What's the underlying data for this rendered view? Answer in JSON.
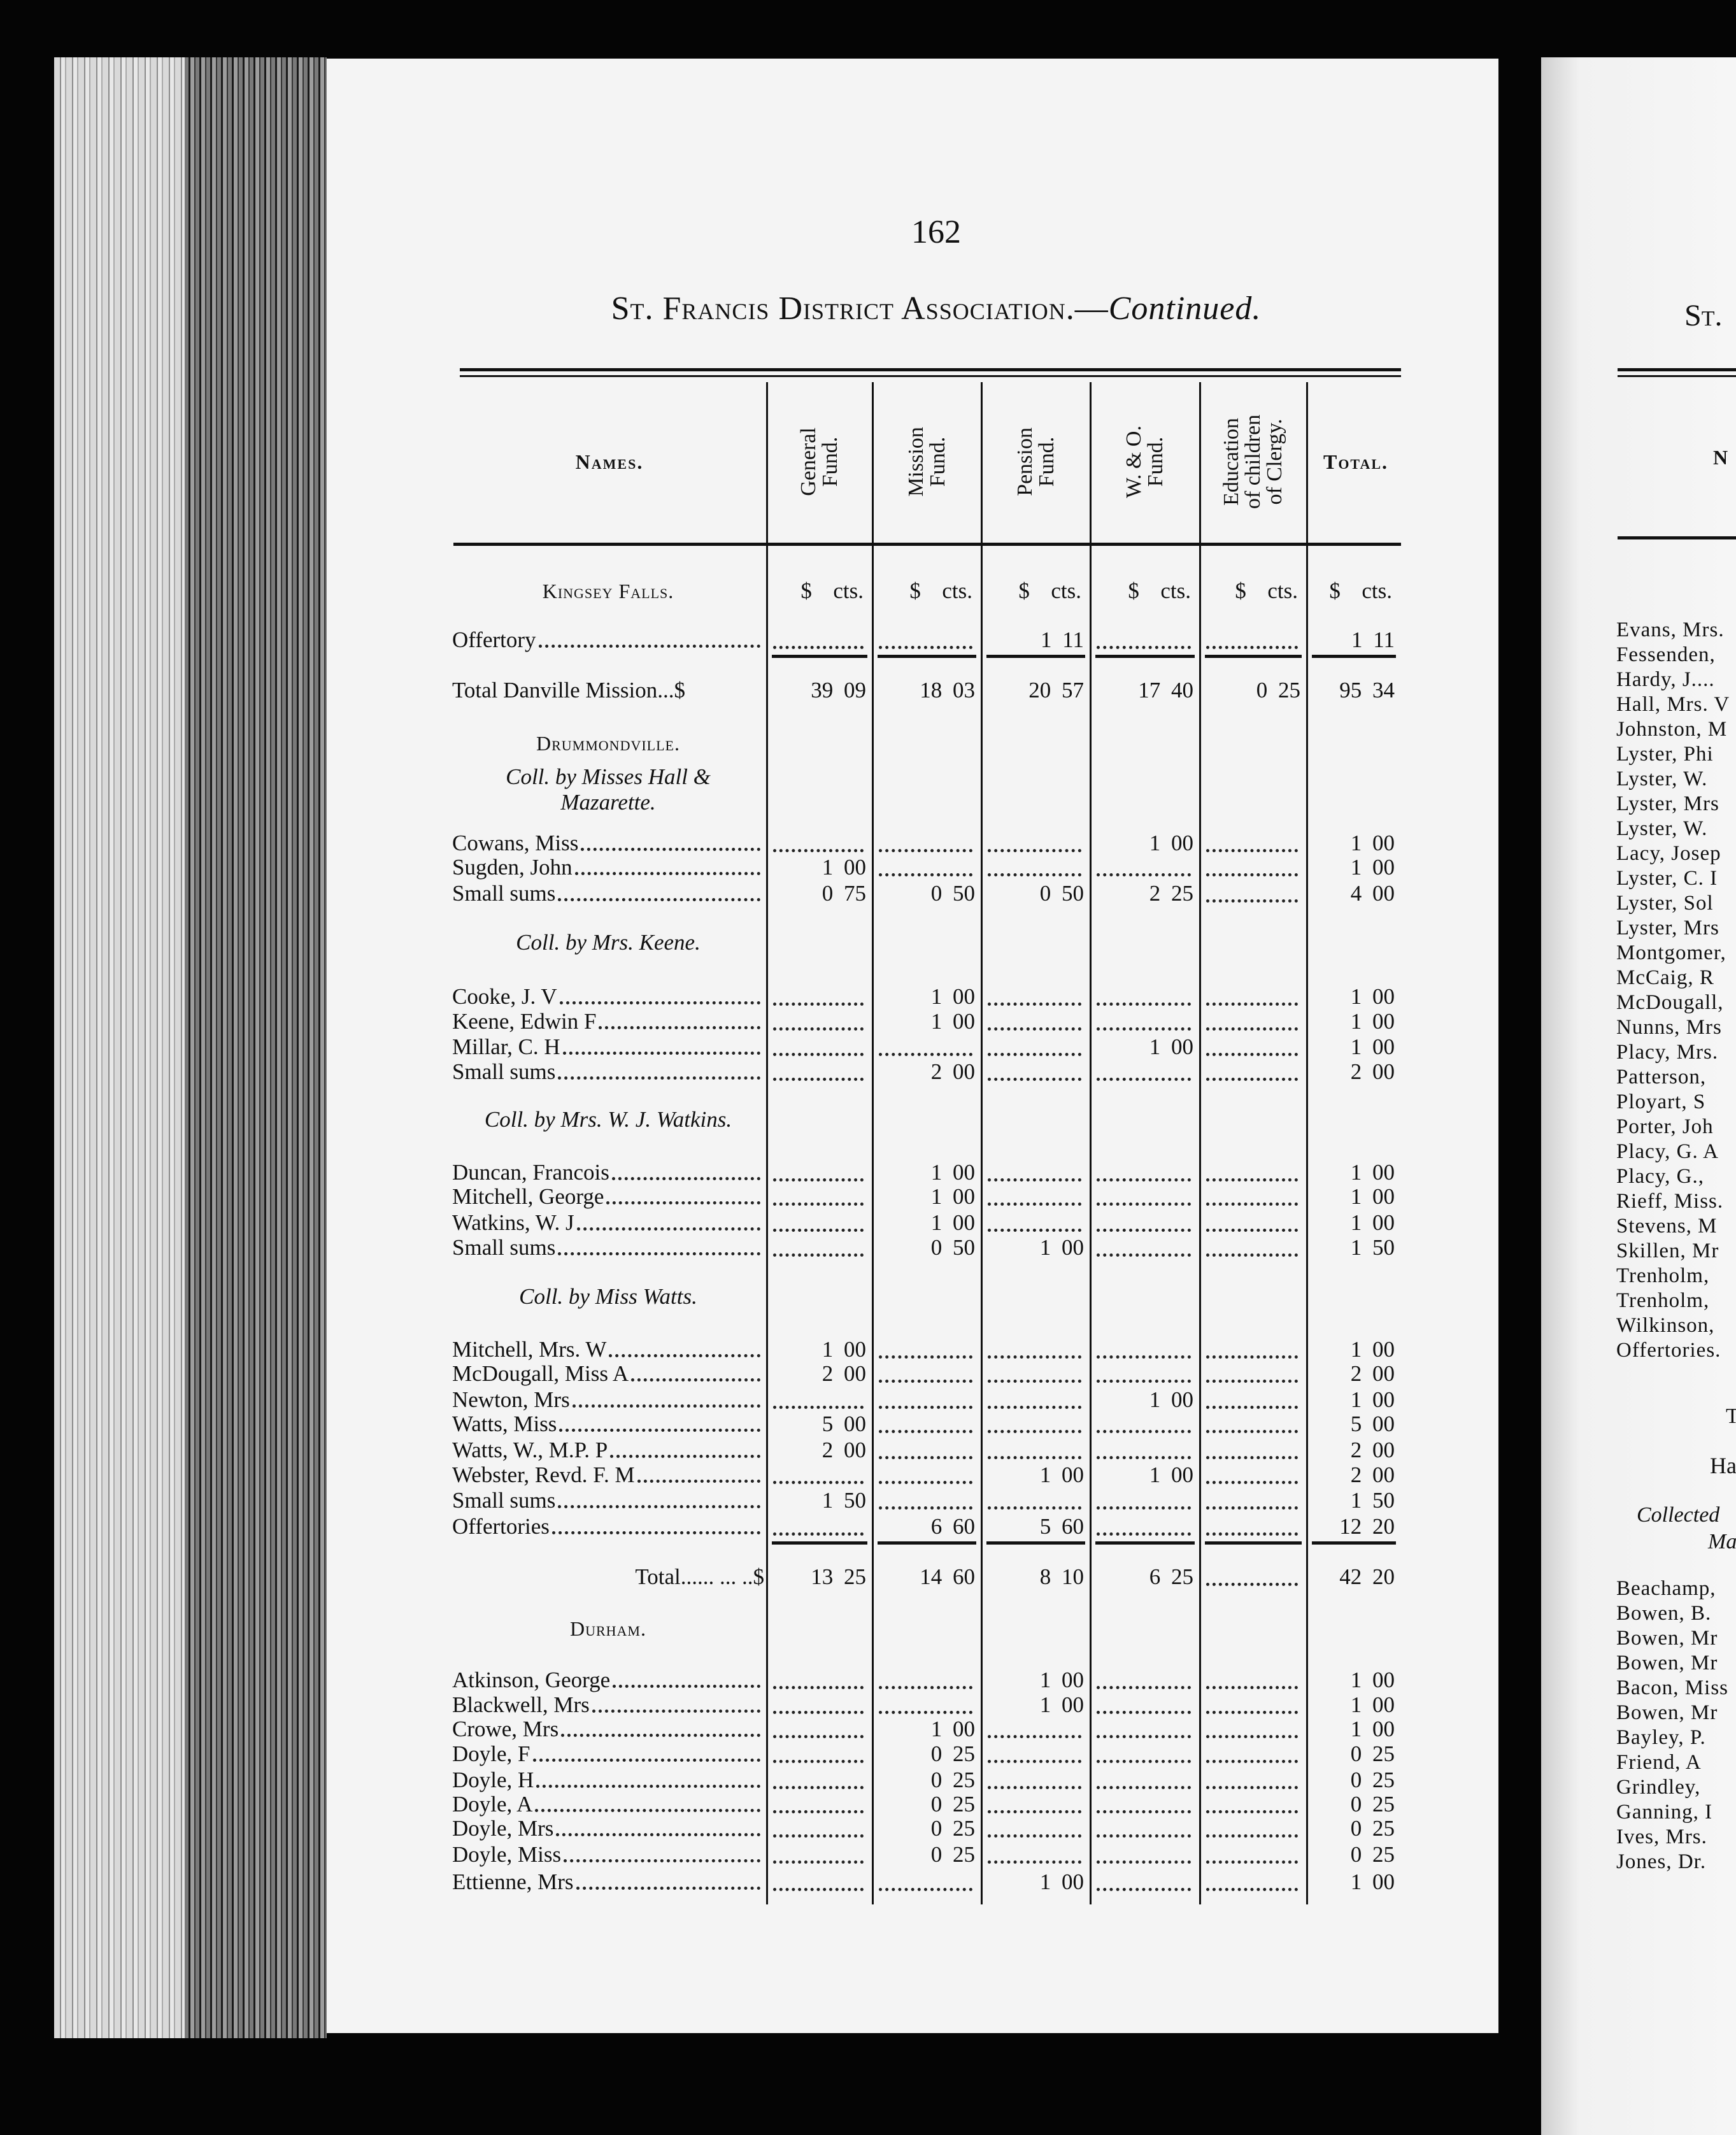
{
  "page": {
    "number": "162",
    "title": "St. Francis District Association.—",
    "title_italic": "Continued."
  },
  "table": {
    "headers": {
      "names": "Names.",
      "columns": [
        [
          "General",
          "Fund."
        ],
        [
          "Mission",
          "Fund."
        ],
        [
          "Pension",
          "Fund."
        ],
        [
          "W. & O.",
          "Fund."
        ],
        [
          "Education",
          "of children",
          "of Clergy."
        ]
      ],
      "total": "Total."
    },
    "unit_label": "$  cts.",
    "rows": [
      {
        "type": "section",
        "name": "Kingsey Falls.",
        "units": true
      },
      {
        "type": "entry",
        "name": "Offertory",
        "values": [
          null,
          null,
          "1 11",
          null,
          null,
          "1 11"
        ]
      },
      {
        "type": "total",
        "name": "Total Danville Mission...$",
        "values": [
          "39 09",
          "18 03",
          "20 57",
          "17 40",
          "0 25",
          "95 34"
        ]
      },
      {
        "type": "section",
        "name": "Drummondville."
      },
      {
        "type": "collector",
        "name": "Coll. by Misses Hall &",
        "name2": "Mazarette."
      },
      {
        "type": "entry",
        "name": "Cowans, Miss",
        "values": [
          null,
          null,
          null,
          "1 00",
          null,
          "1 00"
        ]
      },
      {
        "type": "entry",
        "name": "Sugden, John",
        "values": [
          "1 00",
          null,
          null,
          null,
          null,
          "1 00"
        ]
      },
      {
        "type": "entry",
        "name": "Small sums",
        "values": [
          "0 75",
          "0 50",
          "0 50",
          "2 25",
          null,
          "4 00"
        ]
      },
      {
        "type": "collector",
        "name": "Coll. by Mrs. Keene."
      },
      {
        "type": "entry",
        "name": "Cooke, J. V",
        "values": [
          null,
          "1 00",
          null,
          null,
          null,
          "1 00"
        ]
      },
      {
        "type": "entry",
        "name": "Keene, Edwin F",
        "values": [
          null,
          "1 00",
          null,
          null,
          null,
          "1 00"
        ]
      },
      {
        "type": "entry",
        "name": "Millar, C. H",
        "values": [
          null,
          null,
          null,
          "1 00",
          null,
          "1 00"
        ]
      },
      {
        "type": "entry",
        "name": "Small sums",
        "values": [
          null,
          "2 00",
          null,
          null,
          null,
          "2 00"
        ]
      },
      {
        "type": "collector",
        "name": "Coll. by Mrs. W. J. Watkins."
      },
      {
        "type": "entry",
        "name": "Duncan, Francois",
        "values": [
          null,
          "1 00",
          null,
          null,
          null,
          "1 00"
        ]
      },
      {
        "type": "entry",
        "name": "Mitchell, George",
        "values": [
          null,
          "1 00",
          null,
          null,
          null,
          "1 00"
        ]
      },
      {
        "type": "entry",
        "name": "Watkins, W. J",
        "values": [
          null,
          "1 00",
          null,
          null,
          null,
          "1 00"
        ]
      },
      {
        "type": "entry",
        "name": "Small sums",
        "values": [
          null,
          "0 50",
          "1 00",
          null,
          null,
          "1 50"
        ]
      },
      {
        "type": "collector",
        "name": "Coll. by Miss Watts."
      },
      {
        "type": "entry",
        "name": "Mitchell, Mrs. W",
        "values": [
          "1 00",
          null,
          null,
          null,
          null,
          "1 00"
        ]
      },
      {
        "type": "entry",
        "name": "McDougall, Miss A",
        "values": [
          "2 00",
          null,
          null,
          null,
          null,
          "2 00"
        ]
      },
      {
        "type": "entry",
        "name": "Newton, Mrs",
        "values": [
          null,
          null,
          null,
          "1 00",
          null,
          "1 00"
        ]
      },
      {
        "type": "entry",
        "name": "Watts, Miss",
        "values": [
          "5 00",
          null,
          null,
          null,
          null,
          "5 00"
        ]
      },
      {
        "type": "entry",
        "name": "Watts, W., M.P. P",
        "values": [
          "2 00",
          null,
          null,
          null,
          null,
          "2 00"
        ]
      },
      {
        "type": "entry",
        "name": "Webster, Revd. F. M",
        "values": [
          null,
          null,
          "1 00",
          "1 00",
          null,
          "2 00"
        ]
      },
      {
        "type": "entry",
        "name": "Small sums",
        "values": [
          "1 50",
          null,
          null,
          null,
          null,
          "1 50"
        ]
      },
      {
        "type": "entry",
        "name": "Offertories",
        "values": [
          null,
          "6 60",
          "5 60",
          null,
          null,
          "12 20"
        ]
      },
      {
        "type": "total",
        "name": "Total...... ... ..$",
        "values": [
          "13 25",
          "14 60",
          "8 10",
          "6 25",
          null,
          "42 20"
        ]
      },
      {
        "type": "section",
        "name": "Durham."
      },
      {
        "type": "entry",
        "name": "Atkinson, George",
        "values": [
          null,
          null,
          "1 00",
          null,
          null,
          "1 00"
        ]
      },
      {
        "type": "entry",
        "name": "Blackwell, Mrs",
        "values": [
          null,
          null,
          "1 00",
          null,
          null,
          "1 00"
        ]
      },
      {
        "type": "entry",
        "name": "Crowe, Mrs",
        "values": [
          null,
          "1 00",
          null,
          null,
          null,
          "1 00"
        ]
      },
      {
        "type": "entry",
        "name": "Doyle, F",
        "values": [
          null,
          "0 25",
          null,
          null,
          null,
          "0 25"
        ]
      },
      {
        "type": "entry",
        "name": "Doyle, H",
        "values": [
          null,
          "0 25",
          null,
          null,
          null,
          "0 25"
        ]
      },
      {
        "type": "entry",
        "name": "Doyle, A",
        "values": [
          null,
          "0 25",
          null,
          null,
          null,
          "0 25"
        ]
      },
      {
        "type": "entry",
        "name": "Doyle, Mrs",
        "values": [
          null,
          "0 25",
          null,
          null,
          null,
          "0 25"
        ]
      },
      {
        "type": "entry",
        "name": "Doyle, Miss",
        "values": [
          null,
          "0 25",
          null,
          null,
          null,
          "0 25"
        ]
      },
      {
        "type": "entry",
        "name": "Ettienne, Mrs",
        "values": [
          null,
          null,
          "1 00",
          null,
          null,
          "1 00"
        ]
      }
    ]
  },
  "right_page": {
    "title_fragment": "St.",
    "header_fragment": "N",
    "names_a": [
      "Evans, Mrs.",
      "Fessenden,",
      "Hardy, J....",
      "Hall, Mrs. V",
      "Johnston, M",
      "Lyster, Phi",
      "Lyster, W.",
      "Lyster, Mrs",
      "Lyster, W.",
      "Lacy, Josep",
      "Lyster, C. I",
      "Lyster, Sol",
      "Lyster, Mrs",
      "Montgomer,",
      "McCaig, R",
      "McDougall,",
      "Nunns, Mrs",
      "Placy, Mrs.",
      "Patterson,",
      "Ployart, S",
      "Porter, Joh",
      "Placy, G. A",
      "Placy, G.,",
      "Rieff, Miss.",
      "Stevens, M",
      "Skillen, Mr",
      "Trenholm,",
      "Trenholm,",
      "Wilkinson,",
      "Offertories."
    ],
    "fragment_t": "T",
    "section_fragment": "Ha",
    "collector_line1": "Collected",
    "collector_line2": "Ma",
    "names_b": [
      "Beachamp,",
      "Bowen, B.",
      "Bowen, Mr",
      "Bowen, Mr",
      "Bacon, Miss",
      "Bowen, Mr",
      "Bayley, P.",
      "Friend, A",
      "Grindley,",
      "Ganning, I",
      "Ives, Mrs.",
      "Jones, Dr."
    ]
  }
}
